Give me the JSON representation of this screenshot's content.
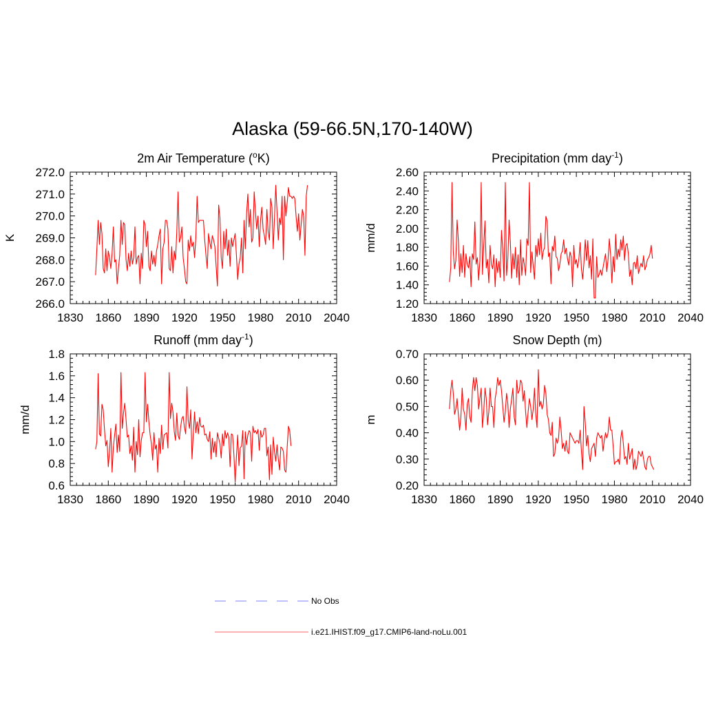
{
  "figure": {
    "title": "Alaska (59-66.5N,170-140W)"
  },
  "chart_data": [
    {
      "type": "line",
      "title": "2m Air Temperature (",
      "title_sup": "o",
      "title_after": "K)",
      "ylabel": "K",
      "xlim": [
        1830,
        2040
      ],
      "ylim": [
        266.0,
        272.0
      ],
      "xticks": [
        "1830",
        "1860",
        "1890",
        "1920",
        "1950",
        "1980",
        "2010",
        "2040"
      ],
      "yticks": [
        "266.0",
        "267.0",
        "268.0",
        "269.0",
        "270.0",
        "271.0",
        "272.0"
      ],
      "x_start": 1850,
      "series": [
        {
          "color": "#ff0000",
          "values": [
            267.3,
            268.5,
            269.8,
            268.7,
            269.7,
            269.2,
            267.6,
            267.4,
            268.5,
            267.5,
            268.4,
            268.1,
            267.6,
            268.3,
            269.5,
            267.9,
            268.0,
            266.9,
            267.6,
            268.2,
            269.8,
            268.7,
            269.7,
            269.6,
            268.0,
            267.5,
            268.3,
            267.7,
            268.4,
            267.8,
            268.1,
            269.5,
            267.8,
            268.1,
            268.2,
            266.9,
            268.3,
            267.6,
            269.8,
            269.6,
            268.6,
            269.3,
            267.7,
            267.5,
            268.4,
            267.8,
            268.2,
            267.7,
            268.4,
            268.7,
            269.1,
            269.4,
            266.9,
            268.5,
            268.8,
            269.8,
            269.8,
            269.4,
            267.6,
            267.5,
            268.6,
            267.4,
            268.4,
            268.0,
            269.3,
            271.1,
            268.8,
            269.0,
            269.5,
            268.1,
            267.6,
            267.0,
            266.9,
            268.9,
            268.4,
            269.1,
            268.6,
            268.8,
            268.1,
            269.0,
            270.9,
            269.7,
            269.8,
            269.8,
            269.8,
            269.8,
            268.9,
            268.2,
            267.6,
            269.2,
            268.8,
            268.5,
            269.1,
            268.9,
            268.6,
            267.7,
            266.8,
            270.5,
            269.9,
            268.1,
            267.6,
            269.3,
            268.5,
            269.4,
            268.2,
            268.9,
            267.7,
            269.0,
            268.6,
            268.9,
            269.2,
            268.2,
            267.1,
            267.8,
            268.1,
            269.0,
            267.4,
            269.8,
            268.5,
            270.1,
            271.0,
            269.5,
            270.3,
            268.8,
            269.0,
            271.1,
            270.2,
            269.4,
            270.0,
            268.6,
            269.8,
            270.4,
            269.4,
            269.1,
            268.7,
            270.3,
            269.3,
            268.9,
            270.8,
            270.4,
            268.5,
            269.9,
            271.4,
            270.2,
            268.9,
            269.9,
            269.6,
            270.9,
            268.0,
            270.9,
            270.0,
            270.6,
            271.3,
            270.9,
            270.9,
            270.8,
            270.9,
            270.8,
            270.0,
            269.3,
            270.1,
            268.9,
            269.6,
            270.3,
            270.0,
            268.2,
            270.9,
            271.4
          ]
        }
      ]
    },
    {
      "type": "line",
      "title": "Precipitation (mm day",
      "title_sup": "-1",
      "title_after": ")",
      "ylabel": "mm/d",
      "xlim": [
        1830,
        2040
      ],
      "ylim": [
        1.2,
        2.6
      ],
      "xticks": [
        "1830",
        "1860",
        "1890",
        "1920",
        "1950",
        "1980",
        "2010",
        "2040"
      ],
      "yticks": [
        "1.20",
        "1.40",
        "1.60",
        "1.80",
        "2.00",
        "2.20",
        "2.40",
        "2.60"
      ],
      "x_start": 1850,
      "series": [
        {
          "color": "#ff0000",
          "values": [
            1.43,
            1.58,
            2.49,
            1.75,
            1.57,
            1.66,
            2.09,
            1.87,
            1.49,
            1.73,
            1.53,
            1.82,
            1.48,
            1.73,
            1.62,
            1.58,
            1.7,
            1.38,
            1.73,
            1.67,
            2.07,
            1.62,
            1.69,
            1.45,
            1.66,
            2.49,
            1.51,
            1.82,
            2.08,
            1.58,
            1.67,
            1.42,
            1.82,
            1.62,
            1.57,
            1.72,
            1.38,
            1.68,
            1.53,
            1.65,
            1.48,
            1.98,
            1.77,
            1.44,
            2.49,
            1.5,
            1.68,
            2.09,
            1.85,
            1.47,
            1.73,
            1.57,
            1.8,
            1.48,
            1.72,
            1.4,
            1.88,
            1.5,
            1.69,
            1.62,
            1.5,
            1.89,
            1.82,
            2.49,
            1.53,
            1.75,
            1.6,
            1.46,
            1.82,
            1.7,
            1.89,
            1.72,
            1.95,
            1.67,
            1.76,
            1.8,
            2.13,
            2.08,
            1.7,
            1.74,
            1.41,
            1.81,
            1.76,
            1.92,
            1.7,
            1.68,
            1.55,
            1.62,
            1.73,
            1.76,
            1.88,
            1.73,
            1.79,
            1.68,
            1.61,
            1.75,
            1.7,
            1.38,
            1.82,
            1.62,
            1.67,
            1.58,
            1.68,
            1.85,
            1.57,
            1.46,
            1.64,
            1.88,
            1.66,
            1.87,
            1.58,
            1.71,
            1.46,
            1.89,
            1.26,
            1.26,
            1.7,
            1.48,
            1.51,
            1.56,
            1.5,
            1.58,
            1.66,
            1.73,
            1.54,
            1.67,
            1.89,
            1.72,
            1.42,
            1.7,
            1.54,
            1.94,
            1.67,
            1.78,
            1.7,
            1.88,
            1.77,
            1.92,
            1.66,
            1.82,
            1.84,
            1.73,
            1.49,
            1.56,
            1.4,
            1.63,
            1.64,
            1.57,
            1.71,
            1.52,
            1.58,
            1.63,
            1.59,
            1.71,
            1.56,
            1.6,
            1.67,
            1.69,
            1.73,
            1.82,
            1.68
          ]
        }
      ]
    },
    {
      "type": "line",
      "title": "Runoff (mm day",
      "title_sup": "-1",
      "title_after": ")",
      "ylabel": "mm/d",
      "xlim": [
        1830,
        2040
      ],
      "ylim": [
        0.6,
        1.8
      ],
      "xticks": [
        "1830",
        "1860",
        "1890",
        "1920",
        "1950",
        "1980",
        "2010",
        "2040"
      ],
      "yticks": [
        "0.6",
        "0.8",
        "1.0",
        "1.2",
        "1.4",
        "1.6",
        "1.8"
      ],
      "x_start": 1850,
      "series": [
        {
          "color": "#ff0000",
          "values": [
            0.93,
            1.0,
            1.62,
            1.07,
            1.05,
            1.34,
            1.29,
            1.11,
            0.96,
            1.01,
            0.77,
            0.91,
            1.12,
            0.72,
            0.95,
            1.06,
            1.16,
            0.9,
            1.06,
            0.91,
            1.63,
            1.12,
            1.26,
            1.35,
            1.2,
            1.04,
            1.06,
            0.89,
            0.96,
            0.83,
            1.13,
            0.72,
            1.0,
            0.88,
            1.2,
            0.86,
            1.01,
            1.08,
            1.08,
            1.63,
            1.18,
            1.34,
            1.18,
            1.06,
            0.98,
            0.83,
            1.08,
            0.93,
            0.97,
            0.72,
            1.03,
            0.89,
            1.15,
            0.93,
            1.06,
            1.07,
            1.08,
            0.94,
            1.63,
            1.21,
            1.35,
            1.27,
            1.09,
            1.01,
            1.26,
            1.06,
            1.02,
            1.13,
            1.21,
            1.23,
            1.13,
            1.07,
            1.5,
            1.19,
            1.12,
            1.29,
            0.84,
            1.07,
            1.27,
            1.08,
            1.18,
            1.07,
            1.22,
            1.14,
            1.13,
            1.15,
            1.06,
            1.07,
            1.02,
            1.0,
            1.09,
            0.84,
            1.03,
            0.9,
            1.0,
            0.86,
            1.08,
            1.03,
            0.98,
            0.85,
            1.07,
            0.96,
            1.1,
            1.03,
            1.08,
            1.04,
            0.77,
            1.07,
            1.06,
            0.88,
            0.63,
            0.86,
            1.06,
            0.78,
            0.94,
            0.96,
            1.1,
            0.66,
            1.09,
            0.97,
            1.06,
            1.1,
            1.08,
            0.82,
            1.14,
            1.08,
            1.1,
            1.07,
            1.11,
            0.92,
            1.1,
            1.04,
            1.06,
            1.12,
            1.12,
            0.87,
            0.95,
            0.65,
            0.97,
            0.7,
            1.04,
            0.91,
            0.82,
            0.97,
            0.84,
            0.74,
            0.95,
            0.94,
            0.91,
            0.74,
            0.72,
            0.95,
            1.14,
            1.1,
            0.96
          ]
        }
      ]
    },
    {
      "type": "line",
      "title": "Snow Depth (m)",
      "title_sup": "",
      "title_after": "",
      "ylabel": "m",
      "xlim": [
        1830,
        2040
      ],
      "ylim": [
        0.2,
        0.7
      ],
      "xticks": [
        "1830",
        "1860",
        "1890",
        "1920",
        "1950",
        "1980",
        "2010",
        "2040"
      ],
      "yticks": [
        "0.20",
        "0.30",
        "0.40",
        "0.50",
        "0.60",
        "0.70"
      ],
      "x_start": 1850,
      "series": [
        {
          "color": "#ff0000",
          "values": [
            0.49,
            0.56,
            0.6,
            0.55,
            0.47,
            0.49,
            0.53,
            0.47,
            0.41,
            0.46,
            0.57,
            0.49,
            0.47,
            0.41,
            0.51,
            0.53,
            0.46,
            0.44,
            0.56,
            0.61,
            0.56,
            0.61,
            0.58,
            0.49,
            0.53,
            0.57,
            0.42,
            0.48,
            0.57,
            0.53,
            0.43,
            0.48,
            0.57,
            0.5,
            0.5,
            0.42,
            0.53,
            0.56,
            0.61,
            0.58,
            0.6,
            0.56,
            0.5,
            0.44,
            0.48,
            0.55,
            0.51,
            0.42,
            0.49,
            0.53,
            0.57,
            0.46,
            0.43,
            0.6,
            0.55,
            0.56,
            0.6,
            0.59,
            0.52,
            0.56,
            0.48,
            0.42,
            0.48,
            0.53,
            0.5,
            0.45,
            0.49,
            0.57,
            0.47,
            0.42,
            0.64,
            0.5,
            0.52,
            0.49,
            0.51,
            0.58,
            0.55,
            0.47,
            0.45,
            0.4,
            0.39,
            0.44,
            0.31,
            0.32,
            0.38,
            0.36,
            0.38,
            0.46,
            0.41,
            0.34,
            0.36,
            0.33,
            0.37,
            0.33,
            0.32,
            0.4,
            0.39,
            0.38,
            0.37,
            0.36,
            0.37,
            0.37,
            0.36,
            0.41,
            0.33,
            0.26,
            0.5,
            0.44,
            0.35,
            0.39,
            0.32,
            0.29,
            0.34,
            0.35,
            0.36,
            0.31,
            0.38,
            0.4,
            0.39,
            0.38,
            0.39,
            0.33,
            0.37,
            0.4,
            0.38,
            0.4,
            0.46,
            0.41,
            0.41,
            0.35,
            0.28,
            0.29,
            0.29,
            0.3,
            0.28,
            0.38,
            0.41,
            0.36,
            0.3,
            0.31,
            0.28,
            0.36,
            0.3,
            0.32,
            0.34,
            0.26,
            0.3,
            0.26,
            0.28,
            0.33,
            0.32,
            0.31,
            0.33,
            0.3,
            0.27,
            0.26,
            0.3,
            0.31,
            0.31,
            0.28,
            0.27,
            0.26
          ]
        }
      ]
    }
  ],
  "legend": {
    "position": "bottom-center",
    "entries": [
      {
        "label": "No Obs",
        "color": "#9999ff",
        "dash": true
      },
      {
        "label": "i.e21.IHIST.f09_g17.CMIP6-land-noLu.001",
        "color": "#ff8080",
        "dash": false
      }
    ]
  }
}
